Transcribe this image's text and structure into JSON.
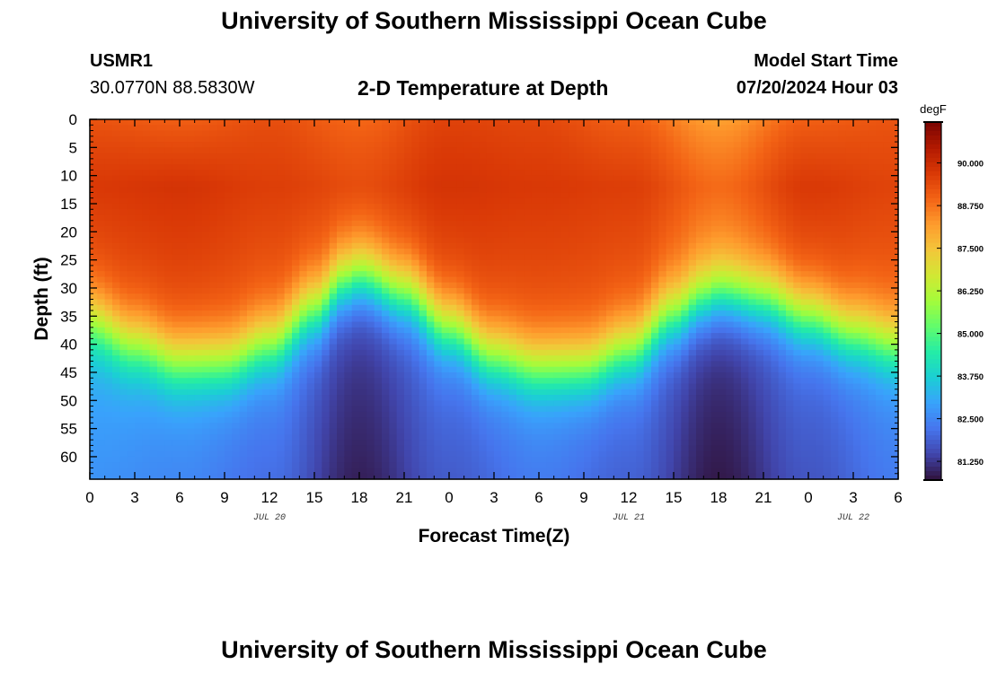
{
  "header": {
    "title": "University of Southern Mississippi Ocean Cube",
    "station": "USMR1",
    "location": "30.0770N  88.5830W",
    "plot_title": "2-D Temperature at Depth",
    "model_label": "Model Start Time",
    "model_time": "07/20/2024 Hour 03"
  },
  "footer": {
    "title": "University of Southern Mississippi Ocean Cube"
  },
  "colors": {
    "background": "#ffffff",
    "text": "#000000",
    "colormap": [
      "#30123b",
      "#4145ab",
      "#4675ed",
      "#39a2fc",
      "#1bcfd4",
      "#24eca6",
      "#61fc6c",
      "#a4fc3b",
      "#d1e834",
      "#f3c63a",
      "#fe9b2d",
      "#f36315",
      "#d93806",
      "#b11901",
      "#7a0402"
    ]
  },
  "chart_data": {
    "type": "heatmap",
    "title": "2-D Temperature at Depth",
    "xlabel": "Forecast Time(Z)",
    "ylabel": "Depth (ft)",
    "x_hours_range": [
      0,
      54
    ],
    "x_tick_labels": [
      "0",
      "3",
      "6",
      "9",
      "12",
      "15",
      "18",
      "21",
      "0",
      "3",
      "6",
      "9",
      "12",
      "15",
      "18",
      "21",
      "0",
      "3",
      "6"
    ],
    "date_labels": [
      {
        "label": "JUL 20",
        "at_hour": 12
      },
      {
        "label": "JUL 21",
        "at_hour": 36
      },
      {
        "label": "JUL 22",
        "at_hour": 51
      }
    ],
    "y_range": [
      0,
      64
    ],
    "y_ticks": [
      0,
      5,
      10,
      15,
      20,
      25,
      30,
      35,
      40,
      45,
      50,
      55,
      60
    ],
    "y_inverted": true,
    "colorbar": {
      "unit": "degF",
      "range": [
        80.7,
        91.2
      ],
      "ticks": [
        "90.000",
        "88.750",
        "87.500",
        "86.250",
        "85.000",
        "83.750",
        "82.500",
        "81.250"
      ],
      "tick_values": [
        90.0,
        88.75,
        87.5,
        86.25,
        85.0,
        83.75,
        82.5,
        81.25
      ]
    },
    "thermocline_depth_ft": {
      "hours": [
        0,
        3,
        6,
        9,
        12,
        15,
        17,
        18,
        21,
        24,
        27,
        30,
        33,
        36,
        39,
        41,
        42,
        45,
        48,
        51,
        54
      ],
      "depths": [
        36,
        40,
        43,
        43,
        40,
        34,
        29,
        28,
        31,
        37,
        42,
        44,
        44,
        41,
        35,
        32,
        31,
        32,
        35,
        38,
        40
      ]
    },
    "surface_temp_degF": {
      "hours": [
        0,
        6,
        12,
        18,
        24,
        30,
        36,
        42,
        48,
        54
      ],
      "values": [
        89.2,
        89.0,
        89.3,
        88.9,
        89.5,
        89.4,
        89.0,
        88.1,
        89.0,
        89.2
      ]
    },
    "mixed_layer_temp_degF": {
      "hours": [
        0,
        6,
        12,
        18,
        24,
        30,
        36,
        42,
        48,
        54
      ],
      "values": [
        89.7,
        89.8,
        89.6,
        89.4,
        89.8,
        89.7,
        89.6,
        88.9,
        89.7,
        89.5
      ]
    },
    "bottom_temp_degF": {
      "hours": [
        0,
        6,
        12,
        18,
        24,
        30,
        36,
        42,
        48,
        54
      ],
      "values": [
        82.7,
        82.5,
        82.1,
        80.9,
        81.8,
        82.3,
        81.9,
        80.8,
        81.7,
        82.3
      ]
    }
  }
}
